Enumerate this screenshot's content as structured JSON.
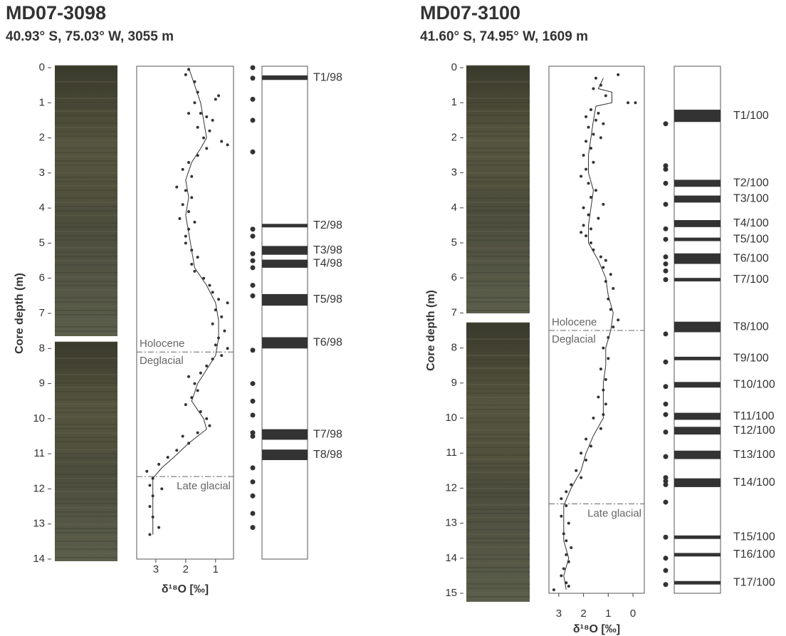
{
  "chart_data": [
    {
      "type": "core-log",
      "title": "MD07-3098",
      "subtitle": "40.93° S,  75.03° W, 3055 m",
      "ylabel": "Core depth (m)",
      "xlabel": "δ¹⁸O [‰]",
      "ylim": [
        0,
        14
      ],
      "yticks": [
        0,
        1,
        2,
        3,
        4,
        5,
        6,
        7,
        8,
        9,
        10,
        11,
        12,
        13,
        14
      ],
      "xlim": [
        3.64,
        0.4
      ],
      "xticks": [
        3,
        2,
        1
      ],
      "color": "#333333",
      "points": {
        "x": [
          1.9,
          2.0,
          1.7,
          1.6,
          0.9,
          1.0,
          1.7,
          1.5,
          1.9,
          1.3,
          1.1,
          1.6,
          1.2,
          1.4,
          0.8,
          0.6,
          1.3,
          1.6,
          1.9,
          2.1,
          1.8,
          2.3,
          2.0,
          1.8,
          2.1,
          1.9,
          2.2,
          1.7,
          1.9,
          2.0,
          2.0,
          1.8,
          1.6,
          1.8,
          1.7,
          1.4,
          1.2,
          1.1,
          0.9,
          0.6,
          1.0,
          0.8,
          1.1,
          0.7,
          0.9,
          1.0,
          0.6,
          0.8,
          1.1,
          1.3,
          1.5,
          1.9,
          1.7,
          1.6,
          1.8,
          2.0,
          1.5,
          1.3,
          1.2,
          1.6,
          2.1,
          1.9,
          2.3,
          2.6,
          2.9,
          3.3,
          3.1,
          3.2,
          2.8,
          3.1,
          3.2,
          3.1,
          2.9,
          3.2
        ],
        "y": [
          0.05,
          0.2,
          0.4,
          0.7,
          0.8,
          0.9,
          1.0,
          1.3,
          1.3,
          1.4,
          1.5,
          1.7,
          1.8,
          2.0,
          2.1,
          2.2,
          2.3,
          2.5,
          2.7,
          2.9,
          3.1,
          3.4,
          3.5,
          3.7,
          3.9,
          4.1,
          4.3,
          4.4,
          4.6,
          4.8,
          5.0,
          5.2,
          5.4,
          5.6,
          5.8,
          6.0,
          6.2,
          6.4,
          6.6,
          6.7,
          6.9,
          7.1,
          7.3,
          7.5,
          7.7,
          7.9,
          8.0,
          8.2,
          8.3,
          8.5,
          8.7,
          8.8,
          9.0,
          9.2,
          9.4,
          9.6,
          9.8,
          10.0,
          10.2,
          10.4,
          10.5,
          10.7,
          10.9,
          11.1,
          11.3,
          11.5,
          11.7,
          11.9,
          12.0,
          12.2,
          12.5,
          12.8,
          13.1,
          13.3
        ]
      },
      "curve": {
        "x": [
          1.9,
          1.7,
          1.5,
          1.4,
          1.3,
          1.5,
          1.8,
          2.0,
          1.9,
          2.0,
          1.9,
          1.8,
          1.7,
          1.3,
          1.0,
          0.9,
          0.9,
          1.0,
          1.3,
          1.6,
          1.8,
          1.4,
          1.3,
          1.9,
          2.4,
          2.8,
          3.1,
          3.1,
          3.1,
          3.1
        ],
        "y": [
          0,
          0.5,
          1,
          1.5,
          2,
          2.3,
          2.7,
          3.2,
          3.7,
          4.2,
          4.7,
          5.2,
          5.7,
          6.2,
          6.7,
          7.2,
          7.7,
          8.2,
          8.6,
          9,
          9.5,
          10,
          10.3,
          10.7,
          11.1,
          11.4,
          11.7,
          12.2,
          12.7,
          13.3
        ]
      },
      "boundaries": [
        {
          "depth": 8.1,
          "above": "Holocene",
          "below": "Deglacial"
        },
        {
          "depth": 11.65,
          "below": "Late glacial"
        }
      ],
      "sample_depths": [
        0,
        0.3,
        0.9,
        1.5,
        2.4,
        4.6,
        4.8,
        5.3,
        5.5,
        5.7,
        6.2,
        6.5,
        8.05,
        9.0,
        9.5,
        9.9,
        10.4,
        10.5,
        11.4,
        11.8,
        12.2,
        12.7,
        13.1
      ],
      "tephra_layers": [
        {
          "label": "T1/98",
          "top": 0.22,
          "bottom": 0.35
        },
        {
          "label": "T2/98",
          "top": 4.45,
          "bottom": 4.55
        },
        {
          "label": "T3/98",
          "top": 5.08,
          "bottom": 5.33
        },
        {
          "label": "T4/98",
          "top": 5.47,
          "bottom": 5.7
        },
        {
          "label": "T5/98",
          "top": 6.45,
          "bottom": 6.78
        },
        {
          "label": "T6/98",
          "top": 7.68,
          "bottom": 8.0
        },
        {
          "label": "T7/98",
          "top": 10.3,
          "bottom": 10.6
        },
        {
          "label": "T8/98",
          "top": 10.88,
          "bottom": 11.18
        }
      ]
    },
    {
      "type": "core-log",
      "title": "MD07-3100",
      "subtitle": "41.60° S,  74.95° W, 1609 m",
      "ylabel": "Core depth (m)",
      "xlabel": "δ¹⁸O [‰]",
      "ylim": [
        0,
        15
      ],
      "yticks": [
        0,
        1,
        2,
        3,
        4,
        5,
        6,
        7,
        8,
        9,
        10,
        11,
        12,
        13,
        14,
        15
      ],
      "xlim": [
        3.4,
        -0.46
      ],
      "xticks": [
        3,
        2,
        1,
        0
      ],
      "color": "#333333",
      "points": {
        "x": [
          0.6,
          1.5,
          1.3,
          1.6,
          1.1,
          0.2,
          -0.1,
          1.7,
          1.4,
          1.9,
          1.5,
          1.2,
          1.8,
          1.6,
          1.3,
          1.9,
          1.7,
          2.0,
          1.6,
          1.9,
          2.1,
          1.8,
          1.5,
          1.7,
          1.2,
          2.0,
          1.8,
          1.4,
          2.0,
          1.7,
          2.1,
          1.9,
          1.7,
          1.6,
          1.3,
          1.1,
          1.2,
          0.9,
          1.1,
          0.8,
          1.0,
          0.9,
          0.6,
          0.8,
          1.0,
          1.2,
          1.0,
          1.3,
          1.1,
          1.2,
          1.4,
          1.1,
          1.2,
          1.6,
          1.3,
          1.9,
          1.7,
          2.1,
          1.9,
          2.3,
          2.1,
          2.5,
          2.7,
          2.9,
          2.7,
          2.9,
          2.6,
          2.8,
          2.7,
          2.5,
          2.7,
          2.6,
          2.8,
          2.9,
          2.7,
          2.6,
          3.2
        ],
        "y": [
          0.2,
          0.3,
          0.5,
          0.6,
          0.8,
          1.0,
          1.0,
          1.2,
          1.3,
          1.4,
          1.5,
          1.6,
          1.7,
          1.9,
          2.0,
          2.1,
          2.3,
          2.5,
          2.7,
          2.9,
          3.1,
          3.3,
          3.5,
          3.7,
          3.9,
          4.0,
          4.2,
          4.3,
          4.5,
          4.6,
          4.7,
          4.8,
          5.0,
          5.2,
          5.4,
          5.5,
          5.7,
          5.9,
          6.1,
          6.3,
          6.6,
          6.9,
          7.2,
          7.4,
          7.7,
          8.0,
          8.3,
          8.6,
          8.9,
          9.2,
          9.4,
          9.6,
          9.9,
          10.0,
          10.3,
          10.6,
          10.8,
          11.0,
          11.2,
          11.5,
          11.7,
          11.9,
          12.1,
          12.3,
          12.5,
          12.8,
          13.0,
          13.3,
          13.5,
          13.7,
          13.9,
          14.1,
          14.3,
          14.5,
          14.7,
          14.8,
          14.9
        ]
      },
      "curve": {
        "x": [
          1.2,
          1.4,
          0.85,
          0.85,
          1.5,
          1.6,
          1.7,
          1.8,
          1.8,
          1.6,
          1.7,
          1.8,
          1.8,
          1.4,
          1.1,
          1.0,
          0.8,
          0.9,
          1.1,
          1.1,
          1.2,
          1.2,
          1.2,
          1.6,
          1.9,
          2.1,
          2.5,
          2.8,
          2.8,
          2.8,
          2.6,
          2.8,
          2.7
        ],
        "y": [
          0.3,
          0.6,
          0.7,
          1.0,
          1.1,
          1.5,
          2,
          2.5,
          3,
          3.5,
          4,
          4.5,
          5,
          5.5,
          6,
          6.5,
          7,
          7.5,
          8,
          8.5,
          9,
          9.5,
          10,
          10.5,
          11,
          11.5,
          12,
          12.5,
          13,
          13.5,
          14,
          14.5,
          14.9
        ]
      },
      "boundaries": [
        {
          "depth": 7.5,
          "above": "Holocene",
          "below": "Deglacial"
        },
        {
          "depth": 12.45,
          "below": "Late glacial"
        }
      ],
      "sample_depths": [
        1.6,
        2.8,
        2.9,
        3.3,
        3.9,
        4.6,
        4.9,
        5.4,
        5.6,
        5.8,
        6.05,
        7.6,
        8.4,
        9.1,
        9.6,
        9.9,
        10.4,
        11.1,
        11.7,
        11.8,
        11.9,
        12.4,
        13.4,
        14.0,
        14.35,
        14.75
      ],
      "tephra_layers": [
        {
          "label": "T1/100",
          "top": 1.2,
          "bottom": 1.55
        },
        {
          "label": "T2/100",
          "top": 3.2,
          "bottom": 3.4
        },
        {
          "label": "T3/100",
          "top": 3.65,
          "bottom": 3.85
        },
        {
          "label": "T4/100",
          "top": 4.35,
          "bottom": 4.55
        },
        {
          "label": "T5/100",
          "top": 4.85,
          "bottom": 4.95
        },
        {
          "label": "T6/100",
          "top": 5.3,
          "bottom": 5.6
        },
        {
          "label": "T7/100",
          "top": 6.0,
          "bottom": 6.1
        },
        {
          "label": "T8/100",
          "top": 7.25,
          "bottom": 7.55
        },
        {
          "label": "T9/100",
          "top": 8.25,
          "bottom": 8.35
        },
        {
          "label": "T10/100",
          "top": 8.97,
          "bottom": 9.13
        },
        {
          "label": "T11/100",
          "top": 9.85,
          "bottom": 10.05
        },
        {
          "label": "T12/100",
          "top": 10.25,
          "bottom": 10.47
        },
        {
          "label": "T13/100",
          "top": 10.93,
          "bottom": 11.17
        },
        {
          "label": "T14/100",
          "top": 11.72,
          "bottom": 11.97
        },
        {
          "label": "T15/100",
          "top": 13.35,
          "bottom": 13.45
        },
        {
          "label": "T16/100",
          "top": 13.85,
          "bottom": 13.95
        },
        {
          "label": "T17/100",
          "top": 14.65,
          "bottom": 14.75
        }
      ]
    }
  ]
}
